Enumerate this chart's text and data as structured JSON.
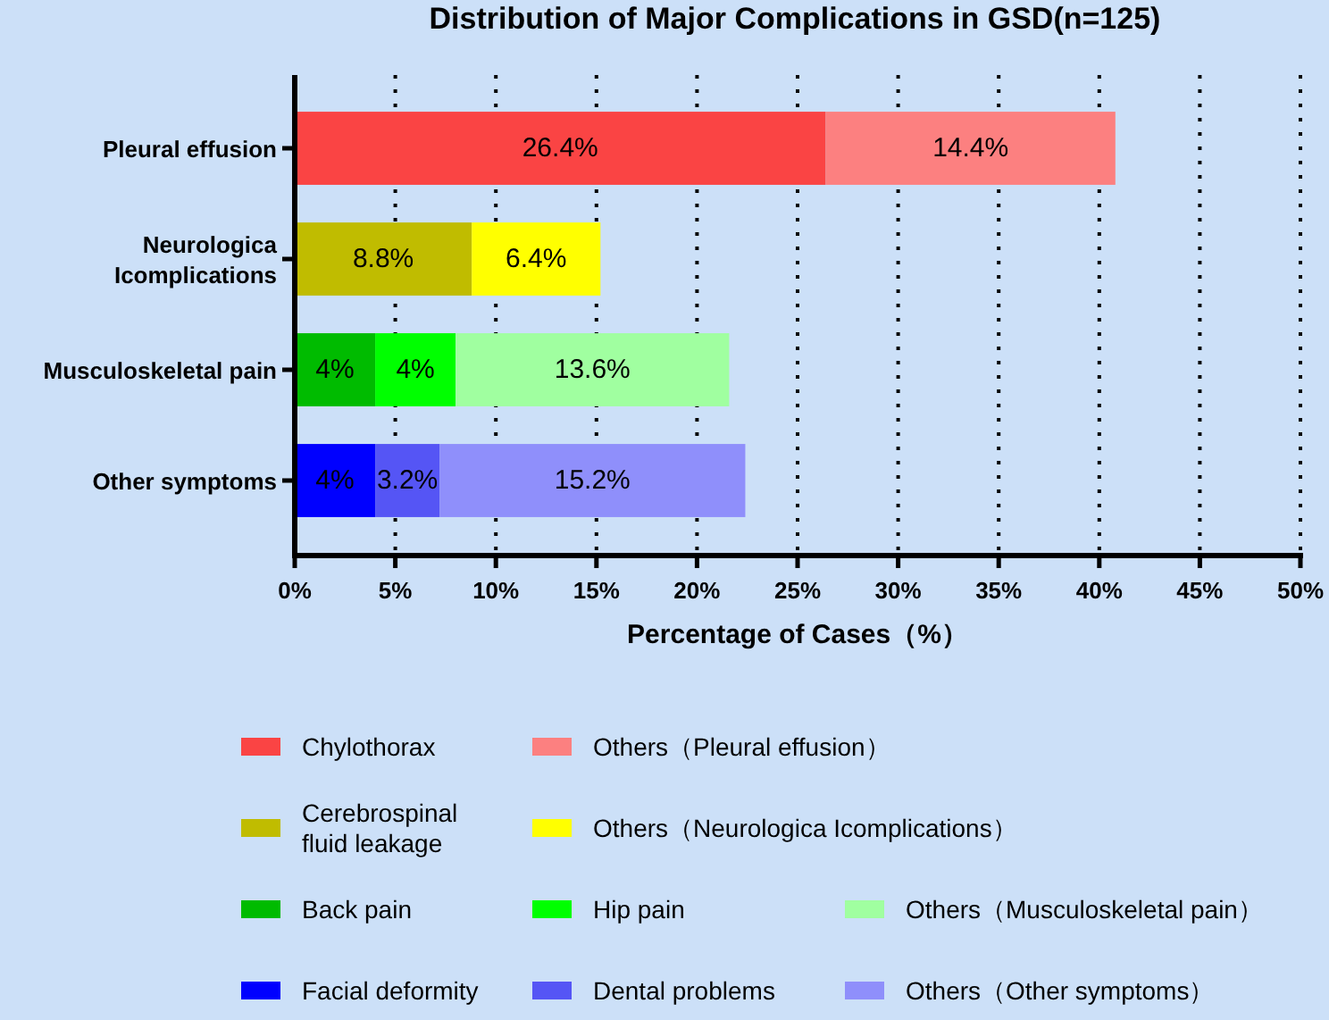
{
  "chart_data": {
    "type": "bar",
    "orientation": "horizontal",
    "stacked": true,
    "title": "Distribution of Major Complications in GSD(n=125)",
    "xlabel": "Percentage of Cases（%）",
    "categories": [
      "Pleural effusion",
      "Neurologica Icomplications",
      "Musculoskeletal pain",
      "Other symptoms"
    ],
    "xlim": [
      0,
      50
    ],
    "xticks": [
      {
        "value": 0,
        "label": "0%"
      },
      {
        "value": 5,
        "label": "5%"
      },
      {
        "value": 10,
        "label": "10%"
      },
      {
        "value": 15,
        "label": "15%"
      },
      {
        "value": 20,
        "label": "20%"
      },
      {
        "value": 25,
        "label": "25%"
      },
      {
        "value": 30,
        "label": "30%"
      },
      {
        "value": 35,
        "label": "35%"
      },
      {
        "value": 40,
        "label": "40%"
      },
      {
        "value": 45,
        "label": "45%"
      },
      {
        "value": 50,
        "label": "50%"
      }
    ],
    "grid": "x",
    "legend": "bottom",
    "series": [
      {
        "name": "Chylothorax",
        "color": "#fa4444",
        "values": [
          26.4,
          null,
          null,
          null
        ],
        "value_labels": [
          "26.4%",
          null,
          null,
          null
        ]
      },
      {
        "name": "Others（Pleural effusion）",
        "color": "#fc8080",
        "values": [
          14.4,
          null,
          null,
          null
        ],
        "value_labels": [
          "14.4%",
          null,
          null,
          null
        ]
      },
      {
        "name": "Cerebrospinal fluid leakage",
        "color": "#c0bc00",
        "values": [
          null,
          8.8,
          null,
          null
        ],
        "value_labels": [
          null,
          "8.8%",
          null,
          null
        ]
      },
      {
        "name": "Others（Neurologica Icomplications）",
        "color": "#ffff00",
        "values": [
          null,
          6.4,
          null,
          null
        ],
        "value_labels": [
          null,
          "6.4%",
          null,
          null
        ]
      },
      {
        "name": "Back pain",
        "color": "#00bb00",
        "values": [
          null,
          null,
          4,
          null
        ],
        "value_labels": [
          null,
          null,
          "4%",
          null
        ]
      },
      {
        "name": "Hip pain",
        "color": "#00ff00",
        "values": [
          null,
          null,
          4,
          null
        ],
        "value_labels": [
          null,
          null,
          "4%",
          null
        ]
      },
      {
        "name": "Others（Musculoskeletal pain）",
        "color": "#a0ffa0",
        "values": [
          null,
          null,
          13.6,
          null
        ],
        "value_labels": [
          null,
          null,
          "13.6%",
          null
        ]
      },
      {
        "name": "Facial deformity",
        "color": "#0000ff",
        "values": [
          null,
          null,
          null,
          4
        ],
        "value_labels": [
          null,
          null,
          null,
          "4%"
        ]
      },
      {
        "name": "Dental problems",
        "color": "#5555f5",
        "values": [
          null,
          null,
          null,
          3.2
        ],
        "value_labels": [
          null,
          null,
          null,
          "3.2%"
        ]
      },
      {
        "name": "Others（Other symptoms）",
        "color": "#8f8ffb",
        "values": [
          null,
          null,
          null,
          15.2
        ],
        "value_labels": [
          null,
          null,
          null,
          "15.2%"
        ]
      }
    ]
  }
}
